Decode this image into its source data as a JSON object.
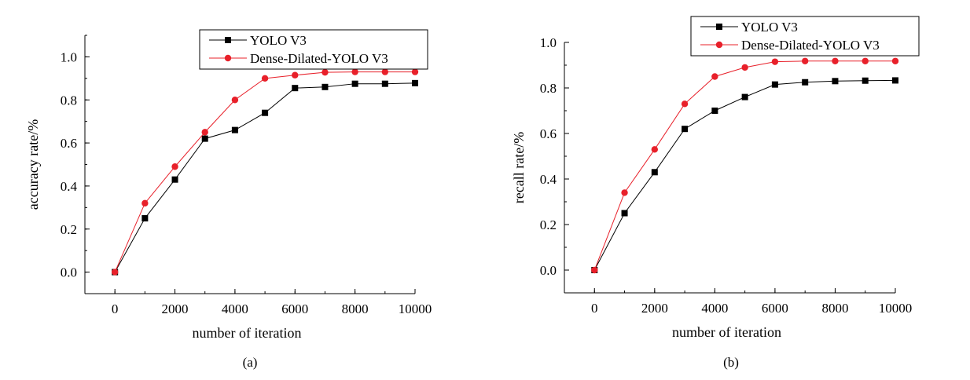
{
  "chart_data": [
    {
      "type": "line",
      "caption": "(a)",
      "xlabel": "number of iteration",
      "ylabel": "accuracy rate/%",
      "xlim": [
        -1000,
        10000
      ],
      "ylim": [
        -0.1,
        1.1
      ],
      "xticks": [
        0,
        2000,
        4000,
        6000,
        8000,
        10000
      ],
      "xtick_labels": [
        "0",
        "2000",
        "4000",
        "6000",
        "8000",
        "10000"
      ],
      "yticks": [
        0.0,
        0.2,
        0.4,
        0.6,
        0.8,
        1.0
      ],
      "ytick_labels": [
        "0.0",
        "0.2",
        "0.4",
        "0.6",
        "0.8",
        "1.0"
      ],
      "legend_position": "top-right",
      "grid": false,
      "x": [
        0,
        1000,
        2000,
        3000,
        4000,
        5000,
        6000,
        7000,
        8000,
        9000,
        10000
      ],
      "series": [
        {
          "name": "YOLO V3",
          "color": "#000000",
          "marker": "square",
          "values": [
            0.0,
            0.25,
            0.43,
            0.62,
            0.66,
            0.74,
            0.855,
            0.86,
            0.875,
            0.875,
            0.878
          ]
        },
        {
          "name": "Dense-Dilated-YOLO V3",
          "color": "#e8202a",
          "marker": "circle",
          "values": [
            0.0,
            0.32,
            0.49,
            0.65,
            0.8,
            0.9,
            0.915,
            0.928,
            0.93,
            0.93,
            0.93
          ]
        }
      ]
    },
    {
      "type": "line",
      "caption": "(b)",
      "xlabel": "number of iteration",
      "ylabel": "recall rate/%",
      "xlim": [
        -1000,
        10000
      ],
      "ylim": [
        -0.1,
        1.0
      ],
      "xticks": [
        0,
        2000,
        4000,
        6000,
        8000,
        10000
      ],
      "xtick_labels": [
        "0",
        "2000",
        "4000",
        "6000",
        "8000",
        "10000"
      ],
      "yticks": [
        0.0,
        0.2,
        0.4,
        0.6,
        0.8,
        1.0
      ],
      "ytick_labels": [
        "0.0",
        "0.2",
        "0.4",
        "0.6",
        "0.8",
        "1.0"
      ],
      "legend_position": "top-right",
      "grid": false,
      "x": [
        0,
        1000,
        2000,
        3000,
        4000,
        5000,
        6000,
        7000,
        8000,
        9000,
        10000
      ],
      "series": [
        {
          "name": "YOLO V3",
          "color": "#000000",
          "marker": "square",
          "values": [
            0.0,
            0.25,
            0.43,
            0.62,
            0.7,
            0.76,
            0.815,
            0.825,
            0.83,
            0.832,
            0.833
          ]
        },
        {
          "name": "Dense-Dilated-YOLO V3",
          "color": "#e8202a",
          "marker": "circle",
          "values": [
            0.0,
            0.34,
            0.53,
            0.73,
            0.85,
            0.89,
            0.915,
            0.918,
            0.918,
            0.918,
            0.918
          ]
        }
      ]
    }
  ]
}
